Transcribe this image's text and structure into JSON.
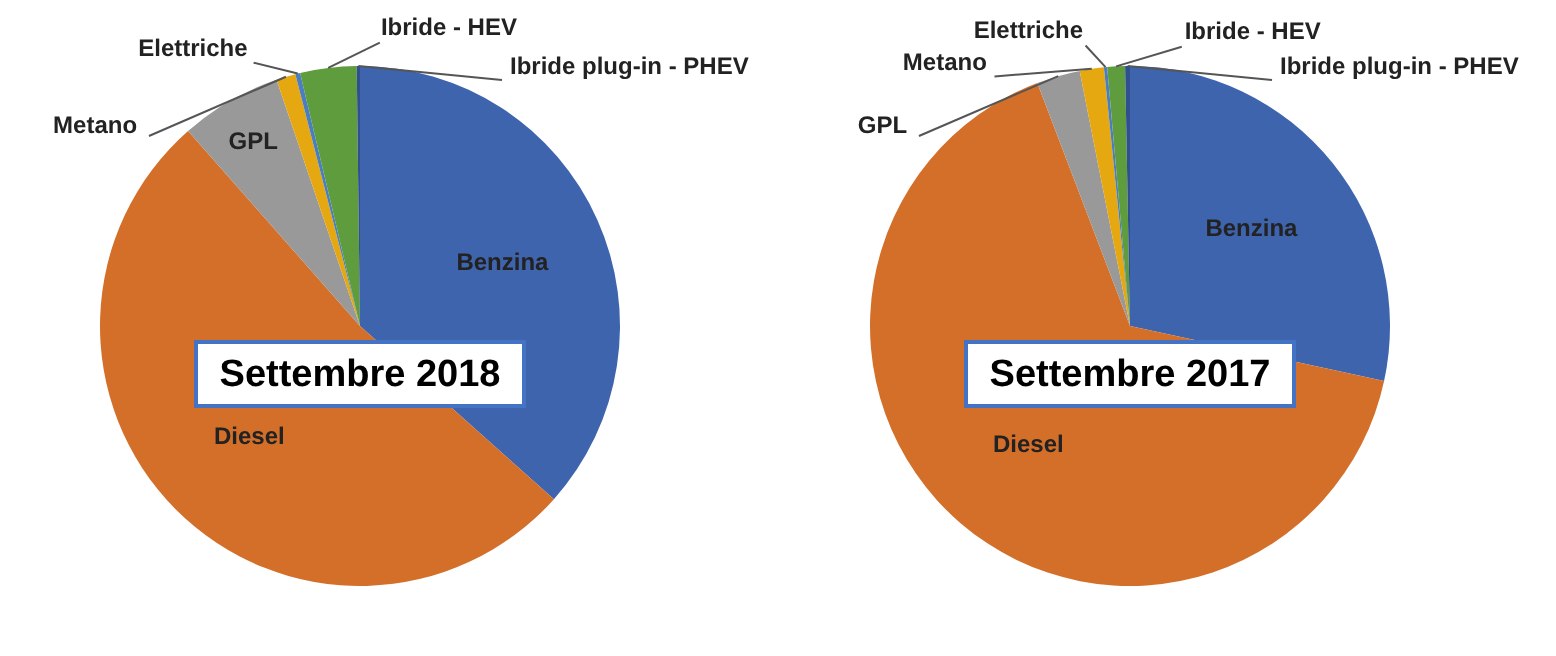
{
  "chart_data": [
    {
      "type": "pie",
      "title": "Settembre 2018",
      "categories": [
        "Benzina",
        "Diesel",
        "GPL",
        "Metano",
        "Elettriche",
        "Ibride - HEV",
        "Ibride plug-in - PHEV"
      ],
      "values": [
        36.6,
        51.9,
        6.3,
        1.2,
        0.3,
        3.5,
        0.2
      ],
      "colors": [
        "#3f64ae",
        "#d46f2a",
        "#999999",
        "#e6a811",
        "#4a7ec0",
        "#5f9c3e",
        "#2f4f8f"
      ]
    },
    {
      "type": "pie",
      "title": "Settembre 2017",
      "categories": [
        "Benzina",
        "Diesel",
        "GPL",
        "Metano",
        "Elettriche",
        "Ibride - HEV",
        "Ibride plug-in - PHEV"
      ],
      "values": [
        28.4,
        65.8,
        2.7,
        1.5,
        0.2,
        1.1,
        0.3
      ],
      "colors": [
        "#3f64ae",
        "#d46f2a",
        "#999999",
        "#e6a811",
        "#4a7ec0",
        "#5f9c3e",
        "#2f4f8f"
      ]
    }
  ]
}
